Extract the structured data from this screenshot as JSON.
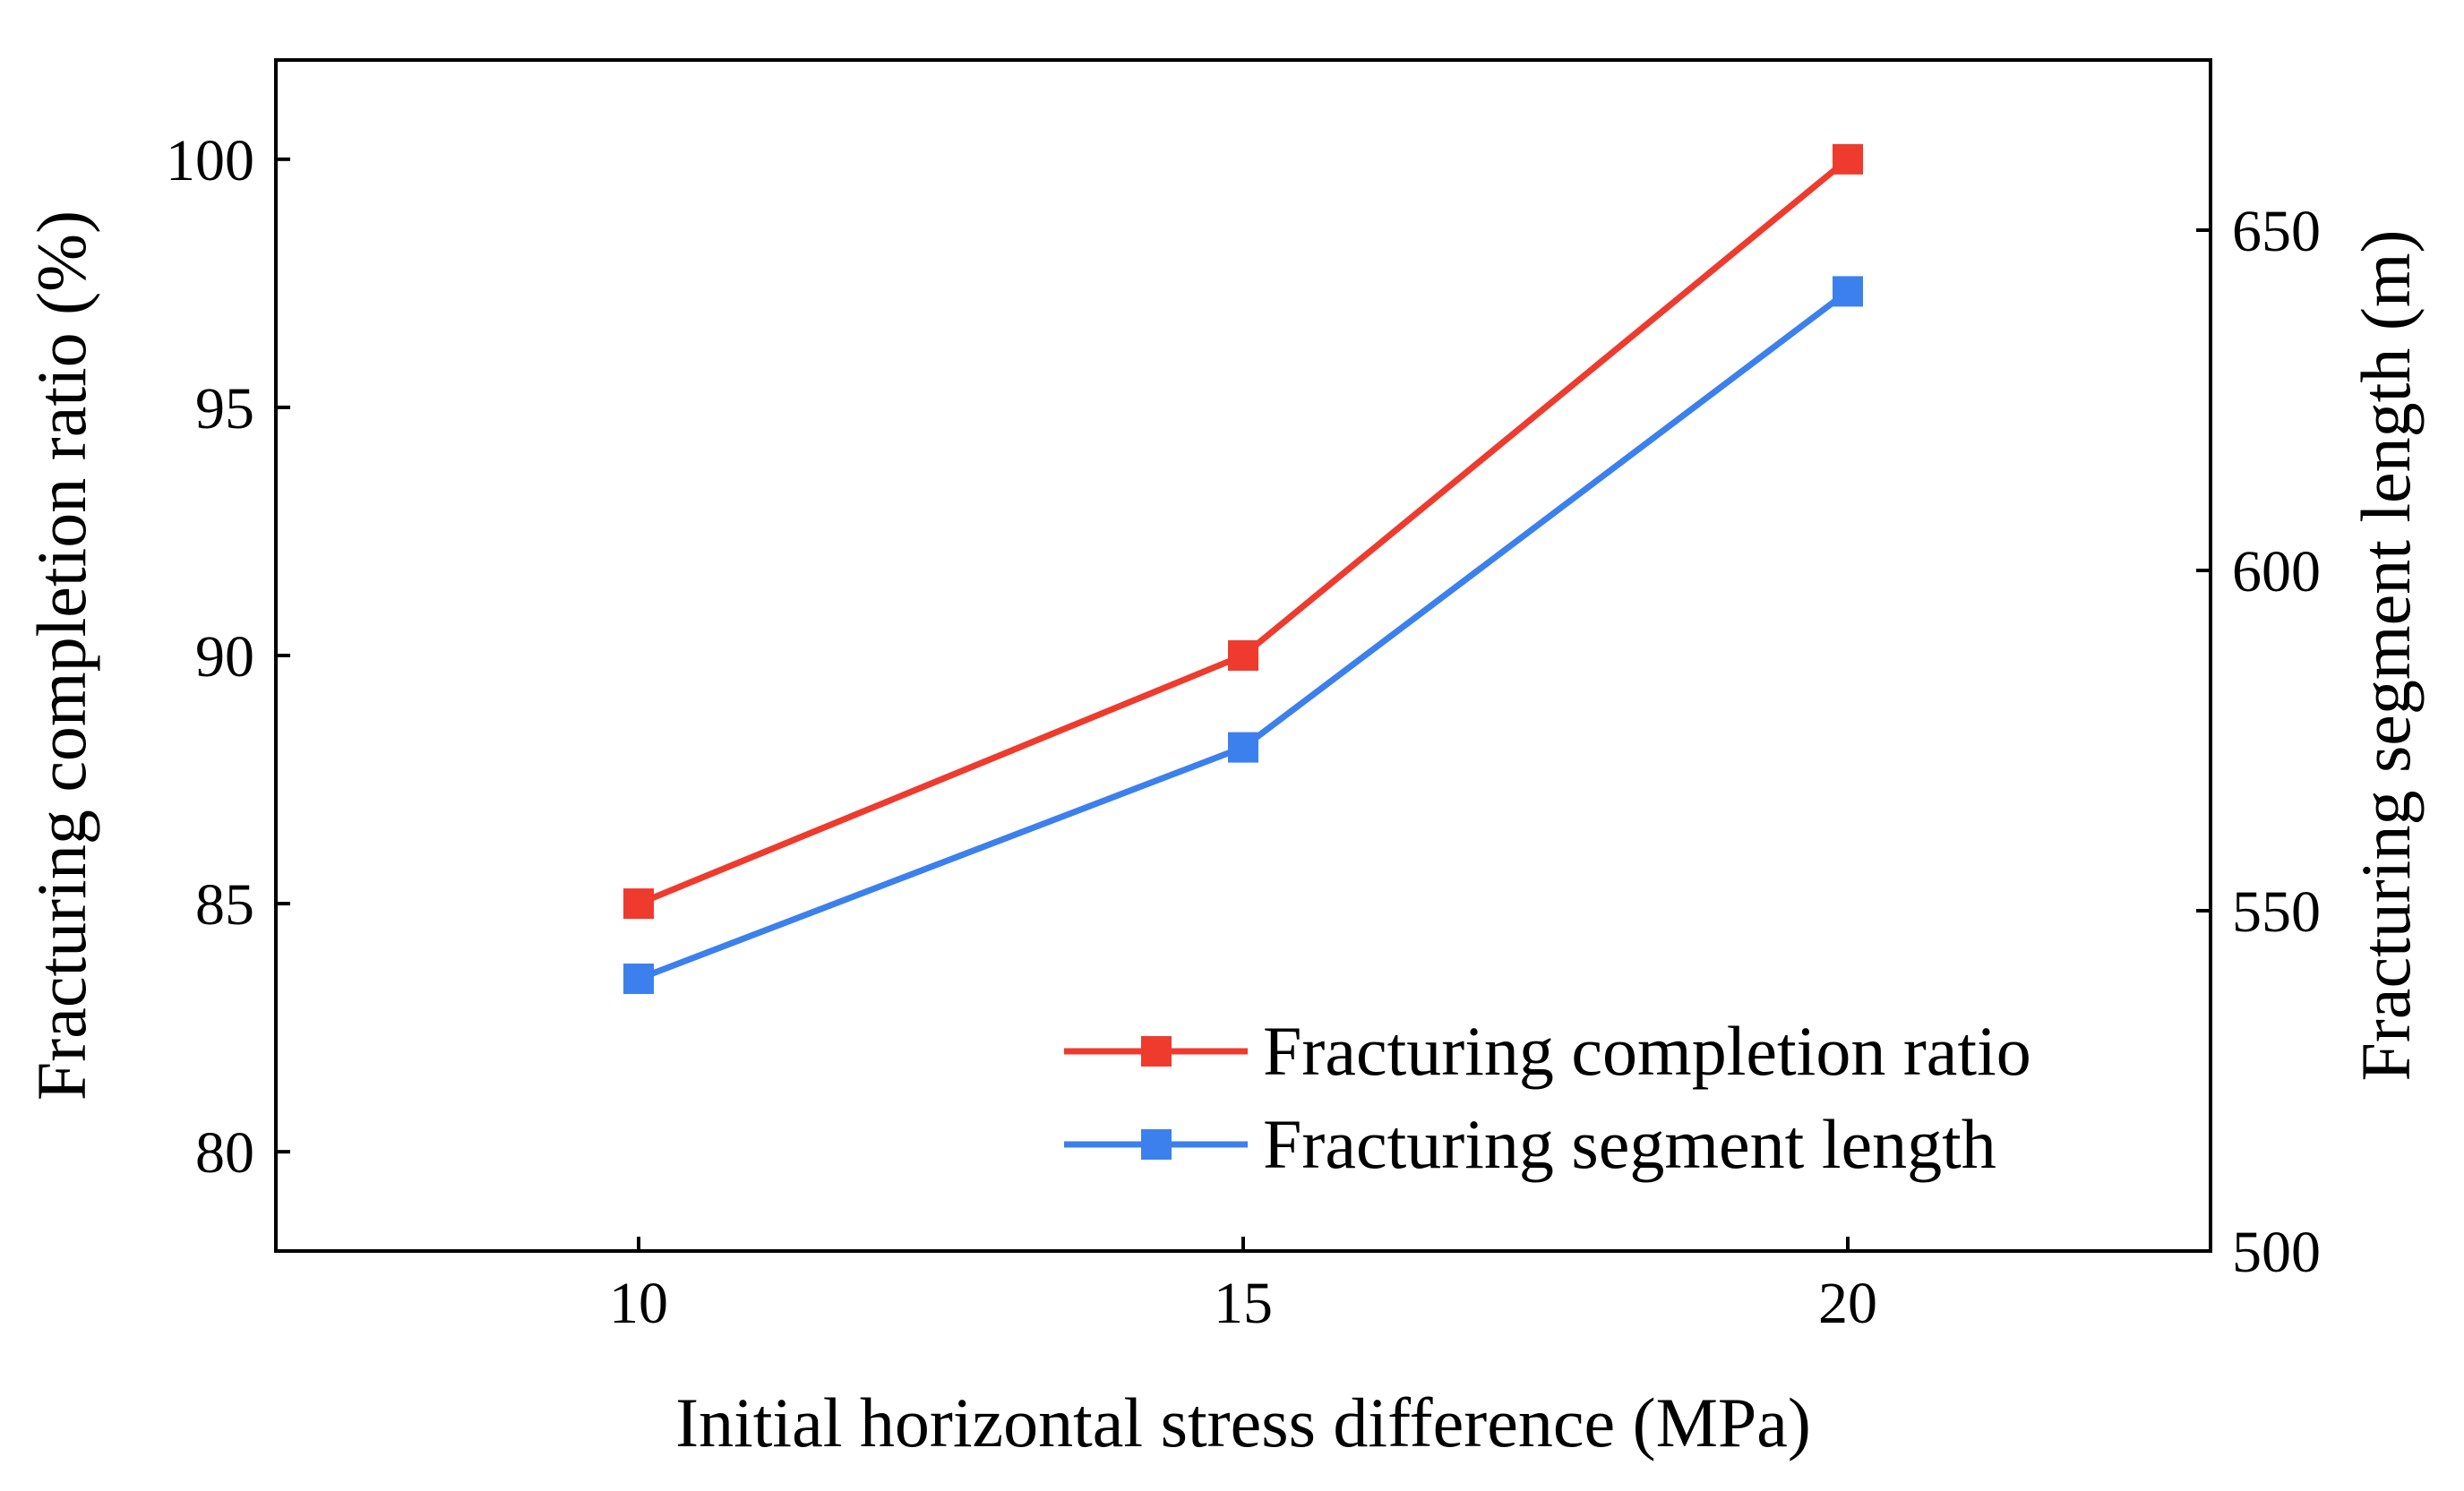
{
  "chart_data": {
    "type": "line",
    "x": [
      10,
      15,
      20
    ],
    "xlabel": "Initial horizontal stress difference (MPa)",
    "xlim": [
      7,
      23
    ],
    "xticks": [
      10,
      15,
      20
    ],
    "xtick_labels": [
      "10",
      "15",
      "20"
    ],
    "left_axis": {
      "label": "Fracturing completion ratio (%)",
      "ylim": [
        78,
        102
      ],
      "ticks": [
        80,
        85,
        90,
        95,
        100
      ],
      "tick_labels": [
        "80",
        "85",
        "90",
        "95",
        "100"
      ]
    },
    "right_axis": {
      "label": "Fracturing segment length (m)",
      "ylim": [
        500,
        675
      ],
      "ticks": [
        500,
        550,
        600,
        650
      ],
      "tick_labels": [
        "500",
        "550",
        "600",
        "650"
      ]
    },
    "series": [
      {
        "name": "Fracturing completion ratio",
        "axis": "left",
        "color": "#ee3b2e",
        "marker": "square",
        "values": [
          85,
          90,
          100
        ]
      },
      {
        "name": "Fracturing segment length",
        "axis": "right",
        "color": "#3c80ee",
        "marker": "square",
        "values": [
          540,
          574,
          641
        ]
      }
    ],
    "legend_position": "bottom-right",
    "grid": false
  }
}
